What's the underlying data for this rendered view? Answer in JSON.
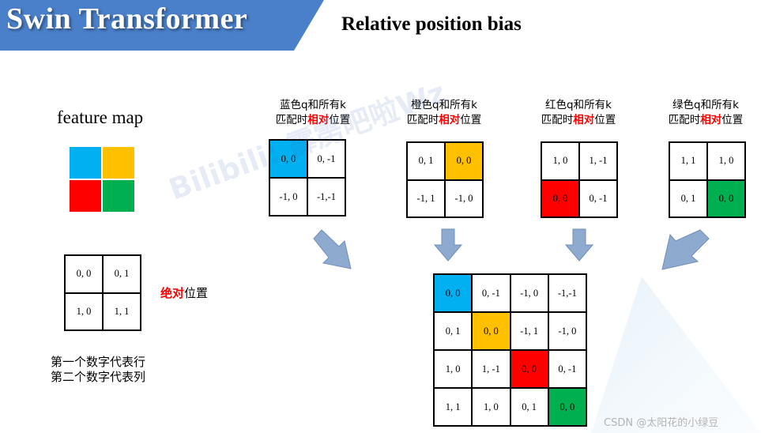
{
  "header": {
    "title": "Swin Transformer",
    "subtitle": "Relative position bias"
  },
  "colors": {
    "blue": "#00b0f0",
    "orange": "#ffc000",
    "red": "#ff0000",
    "green": "#00b050",
    "banner": "#4a7fc9",
    "arrow": "#8eaacf"
  },
  "feature_map": {
    "label": "feature map",
    "cells": [
      "blue",
      "orange",
      "red",
      "green"
    ]
  },
  "absolute": {
    "cells": [
      "0, 0",
      "0, 1",
      "1, 0",
      "1, 1"
    ],
    "label_red": "绝对",
    "label_rest": "位置",
    "note_line1": "第一个数字代表行",
    "note_line2": "第二个数字代表列"
  },
  "relative": [
    {
      "caption_line1": "蓝色q和所有k",
      "caption_pre": "匹配时",
      "caption_red": "相对",
      "caption_post": "位置",
      "cells": [
        "0, 0",
        "0, -1",
        "-1, 0",
        "-1,-1"
      ],
      "highlight": 0,
      "color": "blue"
    },
    {
      "caption_line1": "橙色q和所有k",
      "caption_pre": "匹配时",
      "caption_red": "相对",
      "caption_post": "位置",
      "cells": [
        "0, 1",
        "0, 0",
        "-1, 1",
        "-1, 0"
      ],
      "highlight": 1,
      "color": "orange"
    },
    {
      "caption_line1": "红色q和所有k",
      "caption_pre": "匹配时",
      "caption_red": "相对",
      "caption_post": "位置",
      "cells": [
        "1, 0",
        "1, -1",
        "0, 0",
        "0, -1"
      ],
      "highlight": 2,
      "color": "red"
    },
    {
      "caption_line1": "绿色q和所有k",
      "caption_pre": "匹配时",
      "caption_red": "相对",
      "caption_post": "位置",
      "cells": [
        "1, 1",
        "1, 0",
        "0, 1",
        "0, 0"
      ],
      "highlight": 3,
      "color": "green"
    }
  ],
  "combined": {
    "rows": [
      [
        "0, 0",
        "0, -1",
        "-1, 0",
        "-1,-1"
      ],
      [
        "0, 1",
        "0, 0",
        "-1, 1",
        "-1, 0"
      ],
      [
        "1, 0",
        "1, -1",
        "0, 0",
        "0, -1"
      ],
      [
        "1, 1",
        "1, 0",
        "0, 1",
        "0, 0"
      ]
    ],
    "highlights": [
      {
        "row": 0,
        "col": 0,
        "color": "blue"
      },
      {
        "row": 1,
        "col": 1,
        "color": "orange"
      },
      {
        "row": 2,
        "col": 2,
        "color": "red"
      },
      {
        "row": 3,
        "col": 3,
        "color": "green"
      }
    ]
  },
  "watermark": {
    "text": "Bilibili: 霹雳吧啦Wz"
  },
  "footer": {
    "csdn": "CSDN @太阳花的小绿豆"
  }
}
